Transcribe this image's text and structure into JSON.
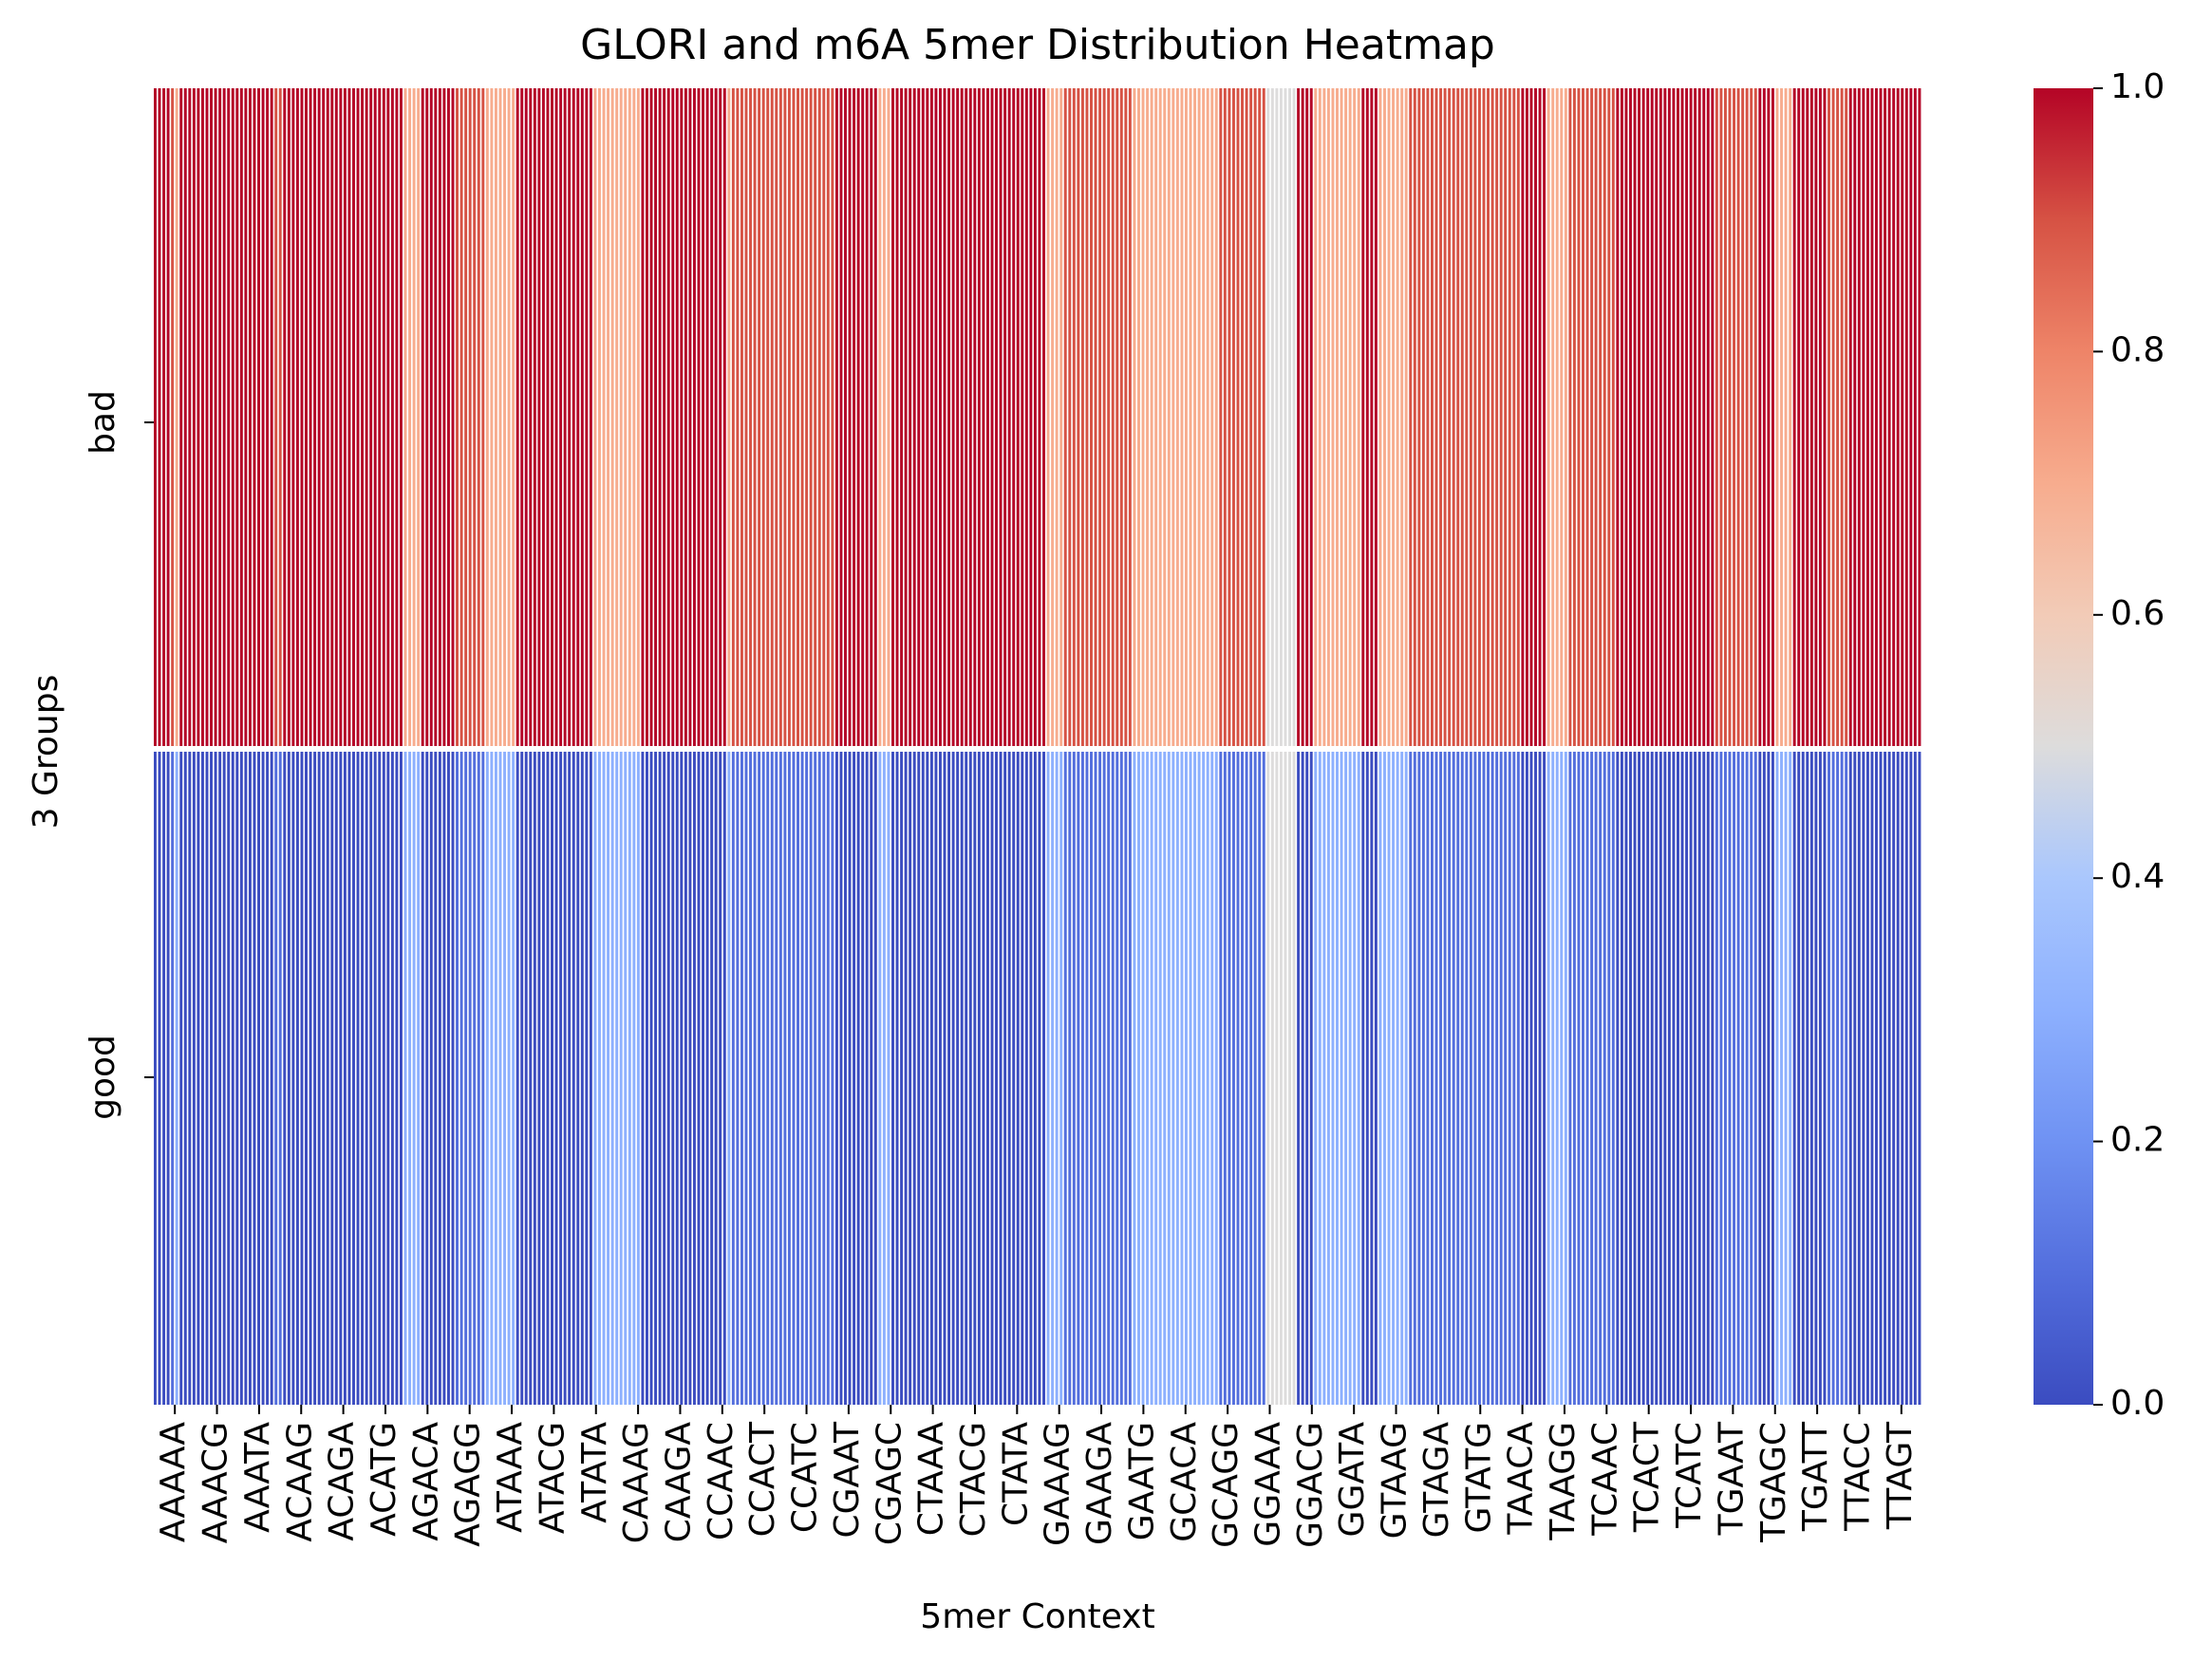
{
  "chart_data": {
    "type": "heatmap",
    "title": "GLORI and m6A 5mer Distribution Heatmap",
    "xlabel": "5mer Context",
    "ylabel": "3 Groups",
    "rows": [
      "bad",
      "good"
    ],
    "x_tick_labels": [
      "AAAAA",
      "AAACG",
      "AAATA",
      "ACAAG",
      "ACAGA",
      "ACATG",
      "AGACA",
      "AGAGG",
      "ATAAA",
      "ATACG",
      "ATATA",
      "CAAAG",
      "CAAGA",
      "CCAAC",
      "CCACT",
      "CCATC",
      "CGAAT",
      "CGAGC",
      "CTAAA",
      "CTACG",
      "CTATA",
      "GAAAG",
      "GAAGA",
      "GAATG",
      "GCACA",
      "GCAGG",
      "GGAAA",
      "GGACG",
      "GGATA",
      "GTAAG",
      "GTAGA",
      "GTATG",
      "TAACA",
      "TAAGG",
      "TCAAC",
      "TCACT",
      "TCATC",
      "TGAAT",
      "TGAGC",
      "TGATT",
      "TTACC",
      "TTAGT"
    ],
    "column_values_bad": [
      1.0,
      1.0,
      1.0,
      1.0,
      0.9,
      0.7,
      1.0,
      1.0,
      1.0,
      1.0,
      1.0,
      1.0,
      1.0,
      1.0,
      1.0,
      1.0,
      1.0,
      1.0,
      1.0,
      1.0,
      1.0,
      1.0,
      1.0,
      1.0,
      1.0,
      1.0,
      1.0,
      1.0,
      0.9,
      0.9,
      1.0,
      1.0,
      1.0,
      1.0,
      1.0,
      1.0,
      1.0,
      1.0,
      1.0,
      1.0,
      1.0,
      1.0,
      1.0,
      1.0,
      1.0,
      1.0,
      1.0,
      1.0,
      1.0,
      1.0,
      1.0,
      1.0,
      1.0,
      1.0,
      1.0,
      1.0,
      1.0,
      1.0,
      0.7,
      0.7,
      0.7,
      0.7,
      1.0,
      1.0,
      1.0,
      1.0,
      1.0,
      1.0,
      1.0,
      1.0,
      0.9,
      0.9,
      0.9,
      0.9,
      0.9,
      0.9,
      0.9,
      0.7,
      0.7,
      0.7,
      0.7,
      0.7,
      0.7,
      0.7,
      1.0,
      1.0,
      1.0,
      1.0,
      1.0,
      1.0,
      1.0,
      1.0,
      1.0,
      1.0,
      1.0,
      1.0,
      1.0,
      1.0,
      1.0,
      1.0,
      1.0,
      1.0,
      0.7,
      0.7,
      0.7,
      0.7,
      0.7,
      0.7,
      0.7,
      0.7,
      0.7,
      0.7,
      0.7,
      1.0,
      1.0,
      1.0,
      1.0,
      1.0,
      1.0,
      1.0,
      1.0,
      1.0,
      1.0,
      1.0,
      1.0,
      1.0,
      1.0,
      1.0,
      1.0,
      1.0,
      1.0,
      1.0,
      1.0,
      0.7,
      0.9,
      0.9,
      0.9,
      0.9,
      0.9,
      0.9,
      0.9,
      0.9,
      0.9,
      0.9,
      0.9,
      0.9,
      0.9,
      0.9,
      0.9,
      0.9,
      0.9,
      0.9,
      0.9,
      0.9,
      0.9,
      0.9,
      0.9,
      0.9,
      1.0,
      1.0,
      1.0,
      1.0,
      1.0,
      1.0,
      1.0,
      1.0,
      1.0,
      1.0,
      0.7,
      0.7,
      0.7,
      1.0,
      1.0,
      1.0,
      1.0,
      1.0,
      1.0,
      1.0,
      1.0,
      1.0,
      1.0,
      1.0,
      1.0,
      1.0,
      1.0,
      1.0,
      1.0,
      1.0,
      1.0,
      1.0,
      1.0,
      1.0,
      1.0,
      1.0,
      1.0,
      1.0,
      1.0,
      1.0,
      1.0,
      1.0,
      1.0,
      1.0,
      1.0,
      1.0,
      1.0,
      1.0,
      1.0,
      0.7,
      0.7,
      0.7,
      0.7,
      0.9,
      0.9,
      0.9,
      0.9,
      0.9,
      0.9,
      0.9,
      0.9,
      0.9,
      0.9,
      0.9,
      0.9,
      0.9,
      0.9,
      0.9,
      0.9,
      0.7,
      0.7,
      0.7,
      0.7,
      0.7,
      0.7,
      0.7,
      0.7,
      0.7,
      0.7,
      0.7,
      0.7,
      0.7,
      0.7,
      0.7,
      0.7,
      0.7,
      0.7,
      0.7,
      0.7,
      0.9,
      0.9,
      0.9,
      0.9,
      0.9,
      0.9,
      0.9,
      0.9,
      0.9,
      0.9,
      0.9,
      0.5,
      0.5,
      0.5,
      0.5,
      0.5,
      0.5,
      0.5,
      1.0,
      1.0,
      1.0,
      1.0,
      0.7,
      0.7,
      0.7,
      0.7,
      0.7,
      0.7,
      0.7,
      0.7,
      0.7,
      0.7,
      0.7,
      1.0,
      1.0,
      1.0,
      1.0,
      0.7,
      0.7,
      0.7,
      0.7,
      0.7,
      0.7,
      0.7,
      0.9,
      0.9,
      0.9,
      0.9,
      0.9,
      0.9,
      0.9,
      0.9,
      0.9,
      0.9,
      0.9,
      0.9,
      0.9,
      0.9,
      0.9,
      0.9,
      0.9,
      0.9,
      0.9,
      0.9,
      0.9,
      0.9,
      0.9,
      0.9,
      0.9,
      0.9,
      1.0,
      1.0,
      1.0,
      1.0,
      1.0,
      1.0,
      0.7,
      0.7,
      0.7,
      0.7,
      0.7,
      0.9,
      0.9,
      0.9,
      0.9,
      0.9,
      0.9,
      0.9,
      0.9,
      0.9,
      0.9,
      0.9,
      1.0,
      1.0,
      1.0,
      1.0,
      1.0,
      1.0,
      1.0,
      1.0,
      1.0,
      1.0,
      1.0,
      1.0,
      1.0,
      1.0,
      1.0,
      1.0,
      1.0,
      1.0,
      1.0,
      1.0,
      1.0,
      1.0,
      1.0,
      0.9,
      0.9,
      0.9,
      0.9,
      0.9,
      0.9,
      0.9,
      0.9,
      0.9,
      0.9,
      1.0,
      1.0,
      1.0,
      1.0,
      0.7,
      0.7,
      0.7,
      0.7,
      1.0,
      1.0,
      1.0,
      1.0,
      1.0,
      1.0,
      1.0,
      1.0,
      0.9,
      0.9,
      0.9,
      0.9,
      0.9,
      1.0,
      1.0,
      1.0,
      1.0,
      1.0,
      1.0,
      1.0,
      1.0,
      1.0,
      1.0,
      1.0,
      1.0,
      1.0,
      1.0,
      1.0,
      1.0,
      1.0
    ],
    "column_values_good": [
      0.0,
      0.0,
      0.0,
      0.0,
      0.1,
      0.3,
      0.0,
      0.0,
      0.0,
      0.0,
      0.0,
      0.0,
      0.0,
      0.0,
      0.0,
      0.0,
      0.0,
      0.0,
      0.0,
      0.0,
      0.0,
      0.0,
      0.0,
      0.0,
      0.0,
      0.0,
      0.0,
      0.0,
      0.1,
      0.1,
      0.0,
      0.0,
      0.0,
      0.0,
      0.0,
      0.0,
      0.0,
      0.0,
      0.0,
      0.0,
      0.0,
      0.0,
      0.0,
      0.0,
      0.0,
      0.0,
      0.0,
      0.0,
      0.0,
      0.0,
      0.0,
      0.0,
      0.0,
      0.0,
      0.0,
      0.0,
      0.0,
      0.0,
      0.3,
      0.3,
      0.3,
      0.3,
      0.0,
      0.0,
      0.0,
      0.0,
      0.0,
      0.0,
      0.0,
      0.0,
      0.1,
      0.1,
      0.1,
      0.1,
      0.1,
      0.1,
      0.1,
      0.3,
      0.3,
      0.3,
      0.3,
      0.3,
      0.3,
      0.3,
      0.0,
      0.0,
      0.0,
      0.0,
      0.0,
      0.0,
      0.0,
      0.0,
      0.0,
      0.0,
      0.0,
      0.0,
      0.0,
      0.0,
      0.0,
      0.0,
      0.0,
      0.0,
      0.3,
      0.3,
      0.3,
      0.3,
      0.3,
      0.3,
      0.3,
      0.3,
      0.3,
      0.3,
      0.3,
      0.0,
      0.0,
      0.0,
      0.0,
      0.0,
      0.0,
      0.0,
      0.0,
      0.0,
      0.0,
      0.0,
      0.0,
      0.0,
      0.0,
      0.0,
      0.0,
      0.0,
      0.0,
      0.0,
      0.0,
      0.3,
      0.1,
      0.1,
      0.1,
      0.1,
      0.1,
      0.1,
      0.1,
      0.1,
      0.1,
      0.1,
      0.1,
      0.1,
      0.1,
      0.1,
      0.1,
      0.1,
      0.1,
      0.1,
      0.1,
      0.1,
      0.1,
      0.1,
      0.1,
      0.1,
      0.0,
      0.0,
      0.0,
      0.0,
      0.0,
      0.0,
      0.0,
      0.0,
      0.0,
      0.0,
      0.3,
      0.3,
      0.3,
      0.0,
      0.0,
      0.0,
      0.0,
      0.0,
      0.0,
      0.0,
      0.0,
      0.0,
      0.0,
      0.0,
      0.0,
      0.0,
      0.0,
      0.0,
      0.0,
      0.0,
      0.0,
      0.0,
      0.0,
      0.0,
      0.0,
      0.0,
      0.0,
      0.0,
      0.0,
      0.0,
      0.0,
      0.0,
      0.0,
      0.0,
      0.0,
      0.0,
      0.0,
      0.0,
      0.0,
      0.3,
      0.3,
      0.3,
      0.3,
      0.1,
      0.1,
      0.1,
      0.1,
      0.1,
      0.1,
      0.1,
      0.1,
      0.1,
      0.1,
      0.1,
      0.1,
      0.1,
      0.1,
      0.1,
      0.1,
      0.3,
      0.3,
      0.3,
      0.3,
      0.3,
      0.3,
      0.3,
      0.3,
      0.3,
      0.3,
      0.3,
      0.3,
      0.3,
      0.3,
      0.3,
      0.3,
      0.3,
      0.3,
      0.3,
      0.3,
      0.1,
      0.1,
      0.1,
      0.1,
      0.1,
      0.1,
      0.1,
      0.1,
      0.1,
      0.1,
      0.1,
      0.5,
      0.5,
      0.5,
      0.5,
      0.5,
      0.5,
      0.5,
      0.0,
      0.0,
      0.0,
      0.0,
      0.3,
      0.3,
      0.3,
      0.3,
      0.3,
      0.3,
      0.3,
      0.3,
      0.3,
      0.3,
      0.3,
      0.0,
      0.0,
      0.0,
      0.0,
      0.3,
      0.3,
      0.3,
      0.3,
      0.3,
      0.3,
      0.3,
      0.1,
      0.1,
      0.1,
      0.1,
      0.1,
      0.1,
      0.1,
      0.1,
      0.1,
      0.1,
      0.1,
      0.1,
      0.1,
      0.1,
      0.1,
      0.1,
      0.1,
      0.1,
      0.1,
      0.1,
      0.1,
      0.1,
      0.1,
      0.1,
      0.1,
      0.1,
      0.0,
      0.0,
      0.0,
      0.0,
      0.0,
      0.0,
      0.3,
      0.3,
      0.3,
      0.3,
      0.3,
      0.1,
      0.1,
      0.1,
      0.1,
      0.1,
      0.1,
      0.1,
      0.1,
      0.1,
      0.1,
      0.1,
      0.0,
      0.0,
      0.0,
      0.0,
      0.0,
      0.0,
      0.0,
      0.0,
      0.0,
      0.0,
      0.0,
      0.0,
      0.0,
      0.0,
      0.0,
      0.0,
      0.0,
      0.0,
      0.0,
      0.0,
      0.0,
      0.0,
      0.0,
      0.1,
      0.1,
      0.1,
      0.1,
      0.1,
      0.1,
      0.1,
      0.1,
      0.1,
      0.1,
      0.0,
      0.0,
      0.0,
      0.0,
      0.3,
      0.3,
      0.3,
      0.3,
      0.0,
      0.0,
      0.0,
      0.0,
      0.0,
      0.0,
      0.0,
      0.0,
      0.1,
      0.1,
      0.1,
      0.1,
      0.1,
      0.0,
      0.0,
      0.0,
      0.0,
      0.0,
      0.0,
      0.0,
      0.0,
      0.0,
      0.0,
      0.0,
      0.0,
      0.0,
      0.0,
      0.0,
      0.0,
      0.0
    ],
    "colormap": "coolwarm",
    "color_min": "#3b4cc0",
    "color_mid": "#dddddd",
    "color_max": "#b40426",
    "vmin": 0.0,
    "vmax": 1.0,
    "colorbar_ticks": [
      "0.0",
      "0.2",
      "0.4",
      "0.6",
      "0.8",
      "1.0"
    ],
    "grid": false
  }
}
